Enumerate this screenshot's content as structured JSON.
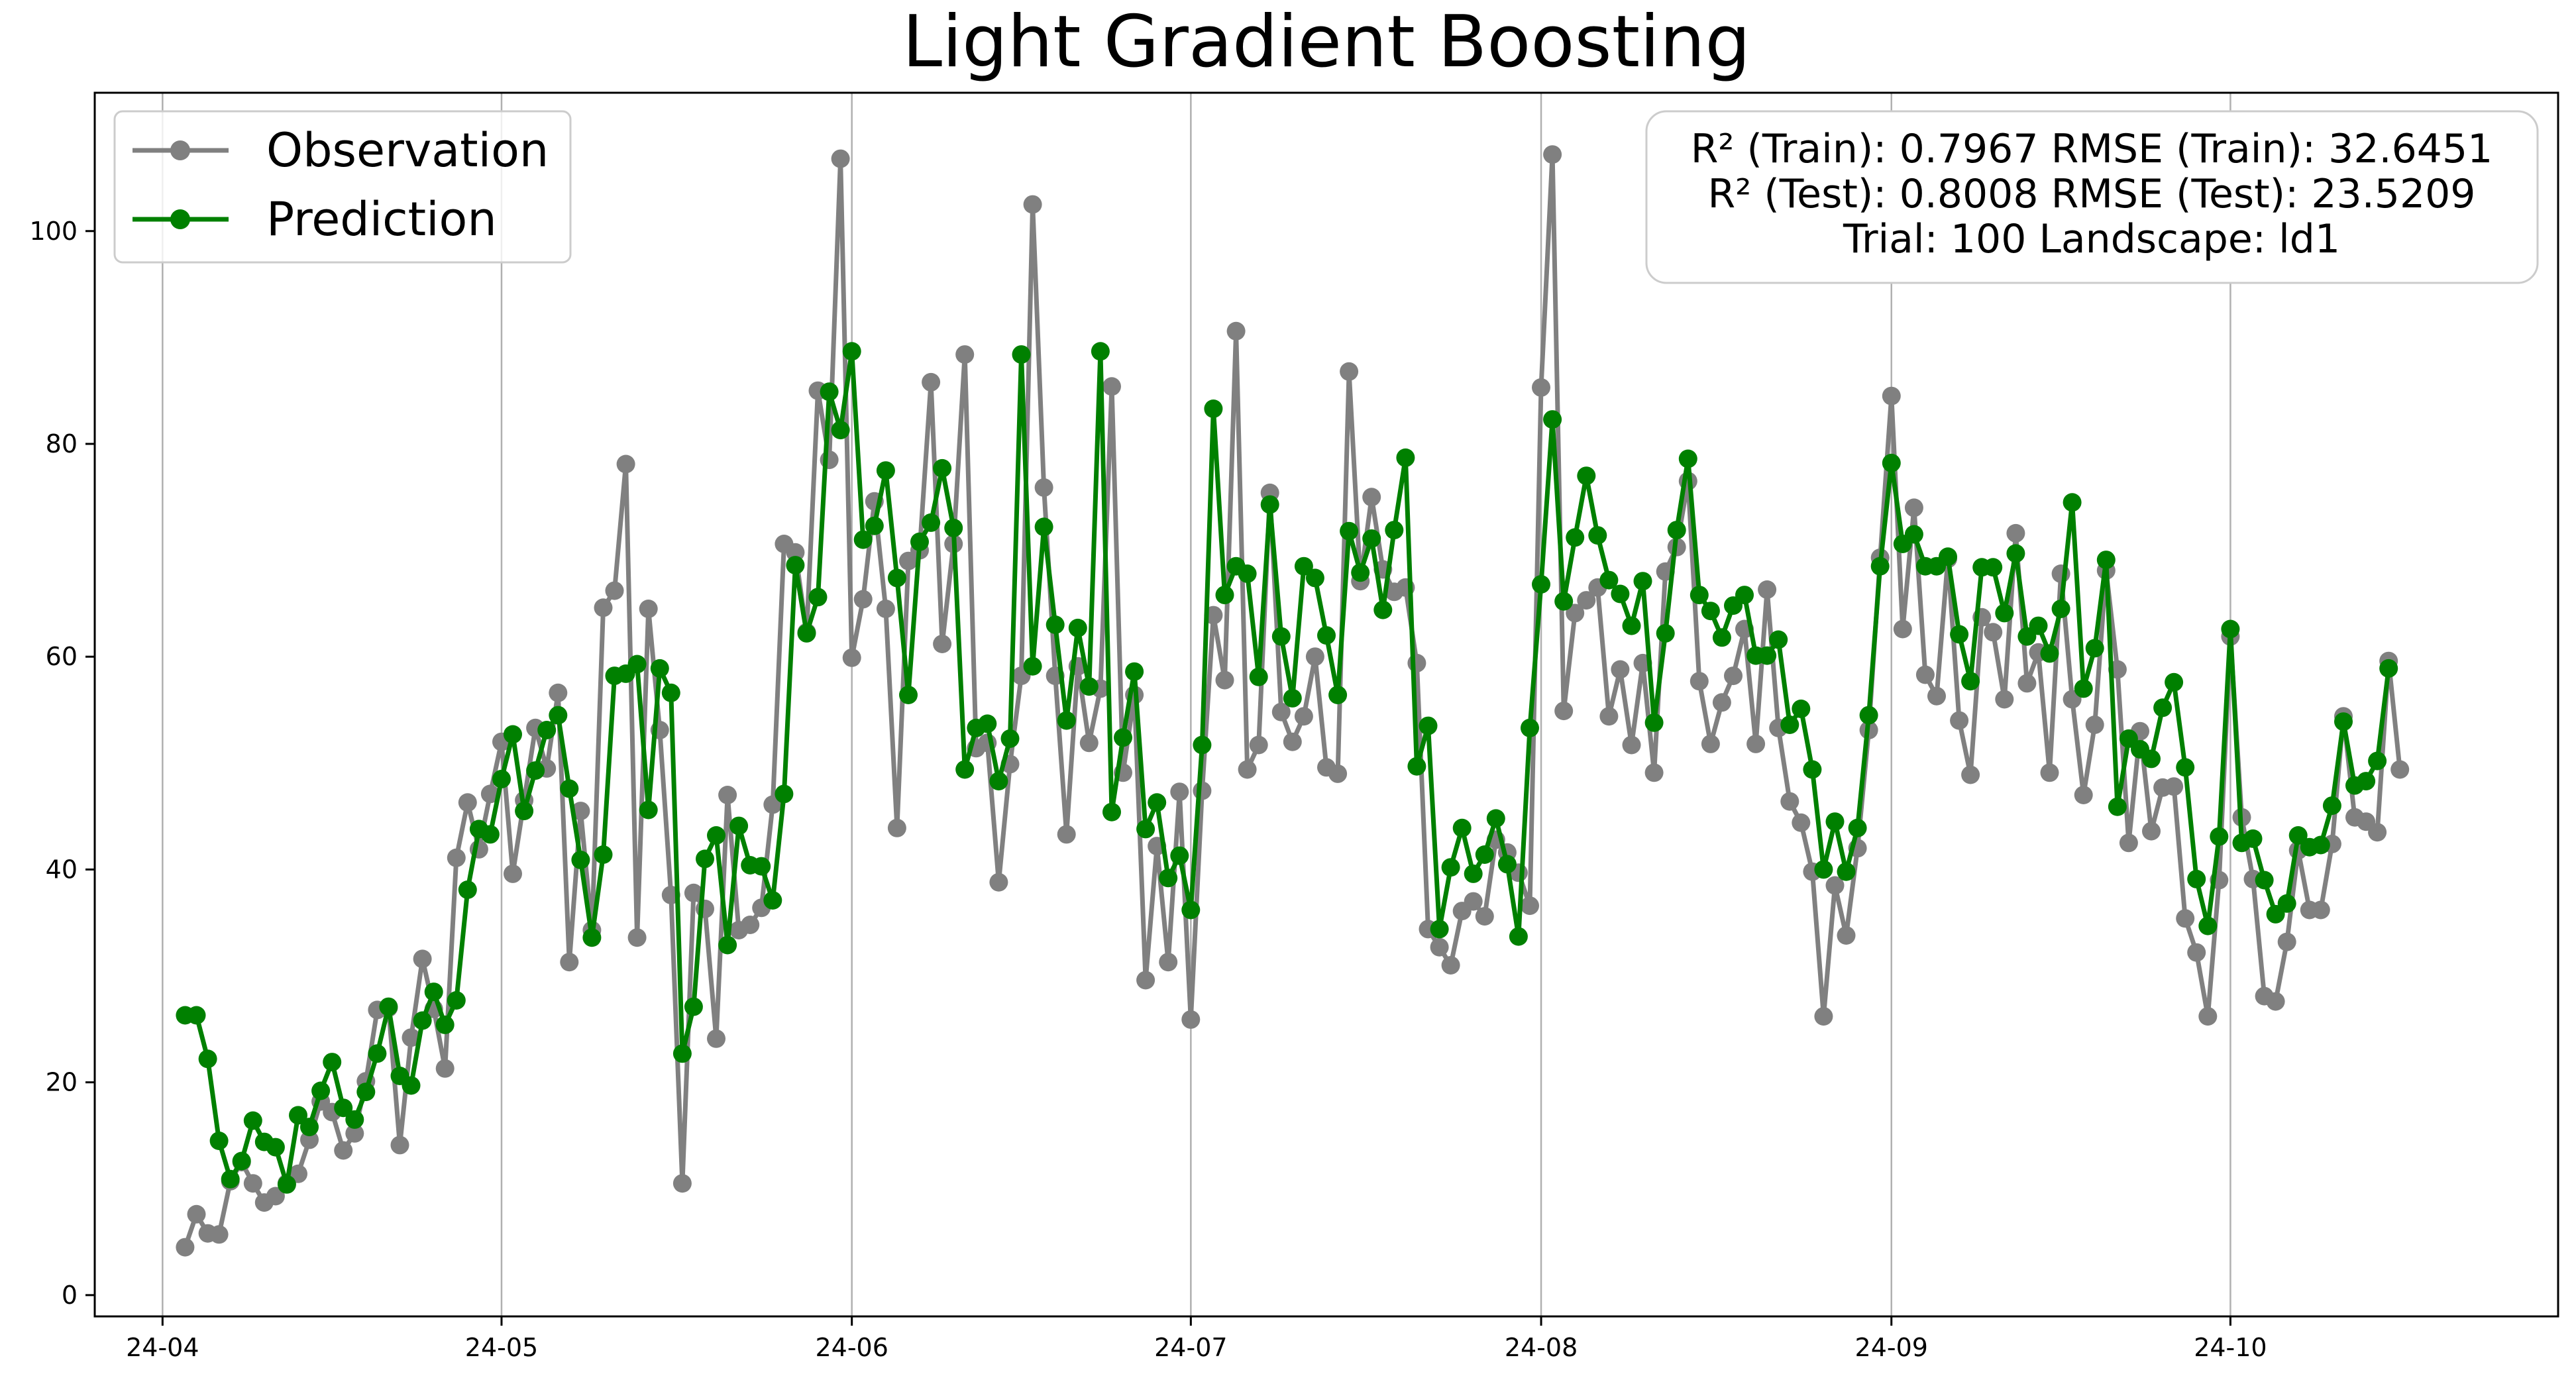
{
  "chart_data": {
    "type": "line",
    "title": "Light Gradient Boosting",
    "xlabel": "",
    "ylabel": "",
    "x_start_date": "2024-04-03",
    "x_step_days": 1,
    "xlim": [
      "2024-03-26",
      "2024-10-30"
    ],
    "ylim": [
      -2,
      113
    ],
    "x_ticks": [
      {
        "date": "2024-04-01",
        "label": "24-04"
      },
      {
        "date": "2024-05-01",
        "label": "24-05"
      },
      {
        "date": "2024-06-01",
        "label": "24-06"
      },
      {
        "date": "2024-07-01",
        "label": "24-07"
      },
      {
        "date": "2024-08-01",
        "label": "24-08"
      },
      {
        "date": "2024-09-01",
        "label": "24-09"
      },
      {
        "date": "2024-10-01",
        "label": "24-10"
      }
    ],
    "y_ticks": [
      0,
      20,
      40,
      60,
      80,
      100
    ],
    "grid": {
      "x": true,
      "y": false
    },
    "legend": {
      "placement": "upper-left"
    },
    "series": [
      {
        "name": "Observation",
        "color": "#808080",
        "values": [
          4.5,
          7.6,
          5.8,
          5.7,
          10.7,
          12.5,
          10.5,
          8.7,
          9.3,
          10.5,
          11.4,
          14.6,
          18.2,
          17.2,
          13.6,
          15.2,
          20.1,
          26.8,
          27.0,
          14.1,
          24.2,
          31.6,
          26.9,
          21.3,
          41.1,
          46.3,
          41.9,
          47.1,
          52.0,
          39.6,
          46.5,
          53.3,
          49.5,
          56.6,
          31.3,
          45.5,
          34.3,
          64.6,
          66.2,
          78.1,
          33.6,
          64.5,
          53.1,
          37.6,
          10.5,
          37.8,
          36.3,
          24.1,
          47.0,
          34.3,
          34.8,
          36.4,
          46.1,
          70.6,
          69.8,
          62.3,
          85.0,
          78.5,
          106.8,
          59.9,
          65.4,
          74.6,
          64.5,
          43.9,
          69.0,
          70.0,
          85.8,
          61.2,
          70.6,
          88.4,
          51.4,
          51.9,
          38.8,
          49.9,
          58.2,
          102.5,
          75.9,
          58.2,
          43.3,
          59.1,
          51.9,
          57.0,
          85.4,
          49.1,
          56.4,
          29.6,
          42.2,
          31.3,
          47.3,
          25.9,
          47.4,
          63.9,
          57.8,
          90.6,
          49.4,
          51.7,
          75.4,
          54.8,
          52.0,
          54.4,
          60.0,
          49.6,
          49.0,
          86.8,
          67.1,
          75.0,
          68.2,
          66.1,
          66.5,
          59.4,
          34.4,
          32.7,
          31.0,
          36.1,
          37.0,
          35.6,
          42.8,
          41.6,
          39.7,
          36.6,
          85.3,
          107.2,
          54.9,
          64.1,
          65.3,
          66.5,
          54.4,
          58.8,
          51.7,
          59.4,
          49.1,
          68.0,
          70.3,
          76.5,
          57.7,
          51.8,
          55.7,
          58.2,
          62.6,
          51.8,
          66.3,
          53.3,
          46.4,
          44.4,
          39.8,
          26.2,
          38.5,
          33.8,
          42.0,
          53.1,
          69.3,
          84.5,
          62.6,
          74.0,
          58.3,
          56.3,
          69.2,
          54.0,
          48.9,
          63.7,
          62.3,
          56.0,
          71.6,
          57.5,
          60.4,
          49.1,
          67.8,
          56.0,
          47.0,
          53.6,
          68.1,
          58.8,
          42.5,
          53.0,
          43.6,
          47.7,
          47.8,
          35.4,
          32.2,
          26.2,
          39.0,
          61.9,
          44.9,
          39.1,
          28.1,
          27.6,
          33.2,
          41.8,
          36.2,
          36.2,
          42.4,
          54.4,
          44.9,
          44.5,
          43.5,
          59.6,
          49.4
        ]
      },
      {
        "name": "Prediction",
        "color": "#008000",
        "values": [
          26.3,
          26.3,
          22.2,
          14.5,
          10.9,
          12.6,
          16.4,
          14.4,
          13.9,
          10.4,
          16.9,
          15.8,
          19.2,
          21.9,
          17.6,
          16.5,
          19.1,
          22.7,
          27.1,
          20.6,
          19.7,
          25.8,
          28.5,
          25.4,
          27.7,
          38.1,
          43.8,
          43.3,
          48.5,
          52.7,
          45.5,
          49.3,
          53.1,
          54.5,
          47.6,
          40.9,
          33.6,
          41.4,
          58.2,
          58.4,
          59.3,
          45.6,
          58.9,
          56.6,
          22.7,
          27.1,
          41.0,
          43.2,
          32.9,
          44.1,
          40.4,
          40.3,
          37.1,
          47.1,
          68.6,
          62.2,
          65.6,
          84.9,
          81.3,
          88.7,
          71.0,
          72.3,
          77.5,
          67.4,
          56.4,
          70.8,
          72.6,
          77.7,
          72.1,
          49.4,
          53.3,
          53.7,
          48.3,
          52.3,
          88.4,
          59.1,
          72.2,
          63.0,
          54.0,
          62.7,
          57.2,
          88.7,
          45.4,
          52.4,
          58.6,
          43.8,
          46.3,
          39.2,
          41.3,
          36.2,
          51.7,
          83.3,
          65.8,
          68.5,
          67.8,
          58.1,
          74.3,
          61.9,
          56.1,
          68.5,
          67.4,
          62.0,
          56.4,
          71.8,
          67.9,
          71.1,
          64.4,
          71.9,
          78.7,
          49.7,
          53.5,
          34.4,
          40.2,
          43.9,
          39.6,
          41.4,
          44.8,
          40.5,
          33.7,
          53.3,
          66.8,
          82.3,
          65.2,
          71.2,
          77.0,
          71.4,
          67.2,
          65.9,
          62.9,
          67.1,
          53.8,
          62.2,
          71.9,
          78.6,
          65.8,
          64.3,
          61.8,
          64.8,
          65.8,
          60.1,
          60.1,
          61.6,
          53.6,
          55.1,
          49.4,
          40.0,
          44.5,
          39.8,
          43.9,
          54.5,
          68.5,
          78.2,
          70.6,
          71.5,
          68.5,
          68.5,
          69.4,
          62.1,
          57.7,
          68.4,
          68.4,
          64.1,
          69.7,
          61.9,
          62.9,
          60.3,
          64.5,
          74.5,
          57.0,
          60.8,
          69.1,
          45.9,
          52.3,
          51.3,
          50.4,
          55.2,
          57.6,
          49.6,
          39.1,
          34.7,
          43.1,
          62.6,
          42.5,
          42.9,
          39.0,
          35.8,
          36.8,
          43.2,
          42.1,
          42.3,
          46.0,
          53.9,
          47.9,
          48.3,
          50.2,
          58.9
        ]
      }
    ],
    "annotation_lines": [
      "R² (Train): 0.7967  RMSE (Train): 32.6451",
      "R² (Test): 0.8008  RMSE (Test): 23.5209",
      "Trial: 100  Landscape: ld1"
    ]
  }
}
